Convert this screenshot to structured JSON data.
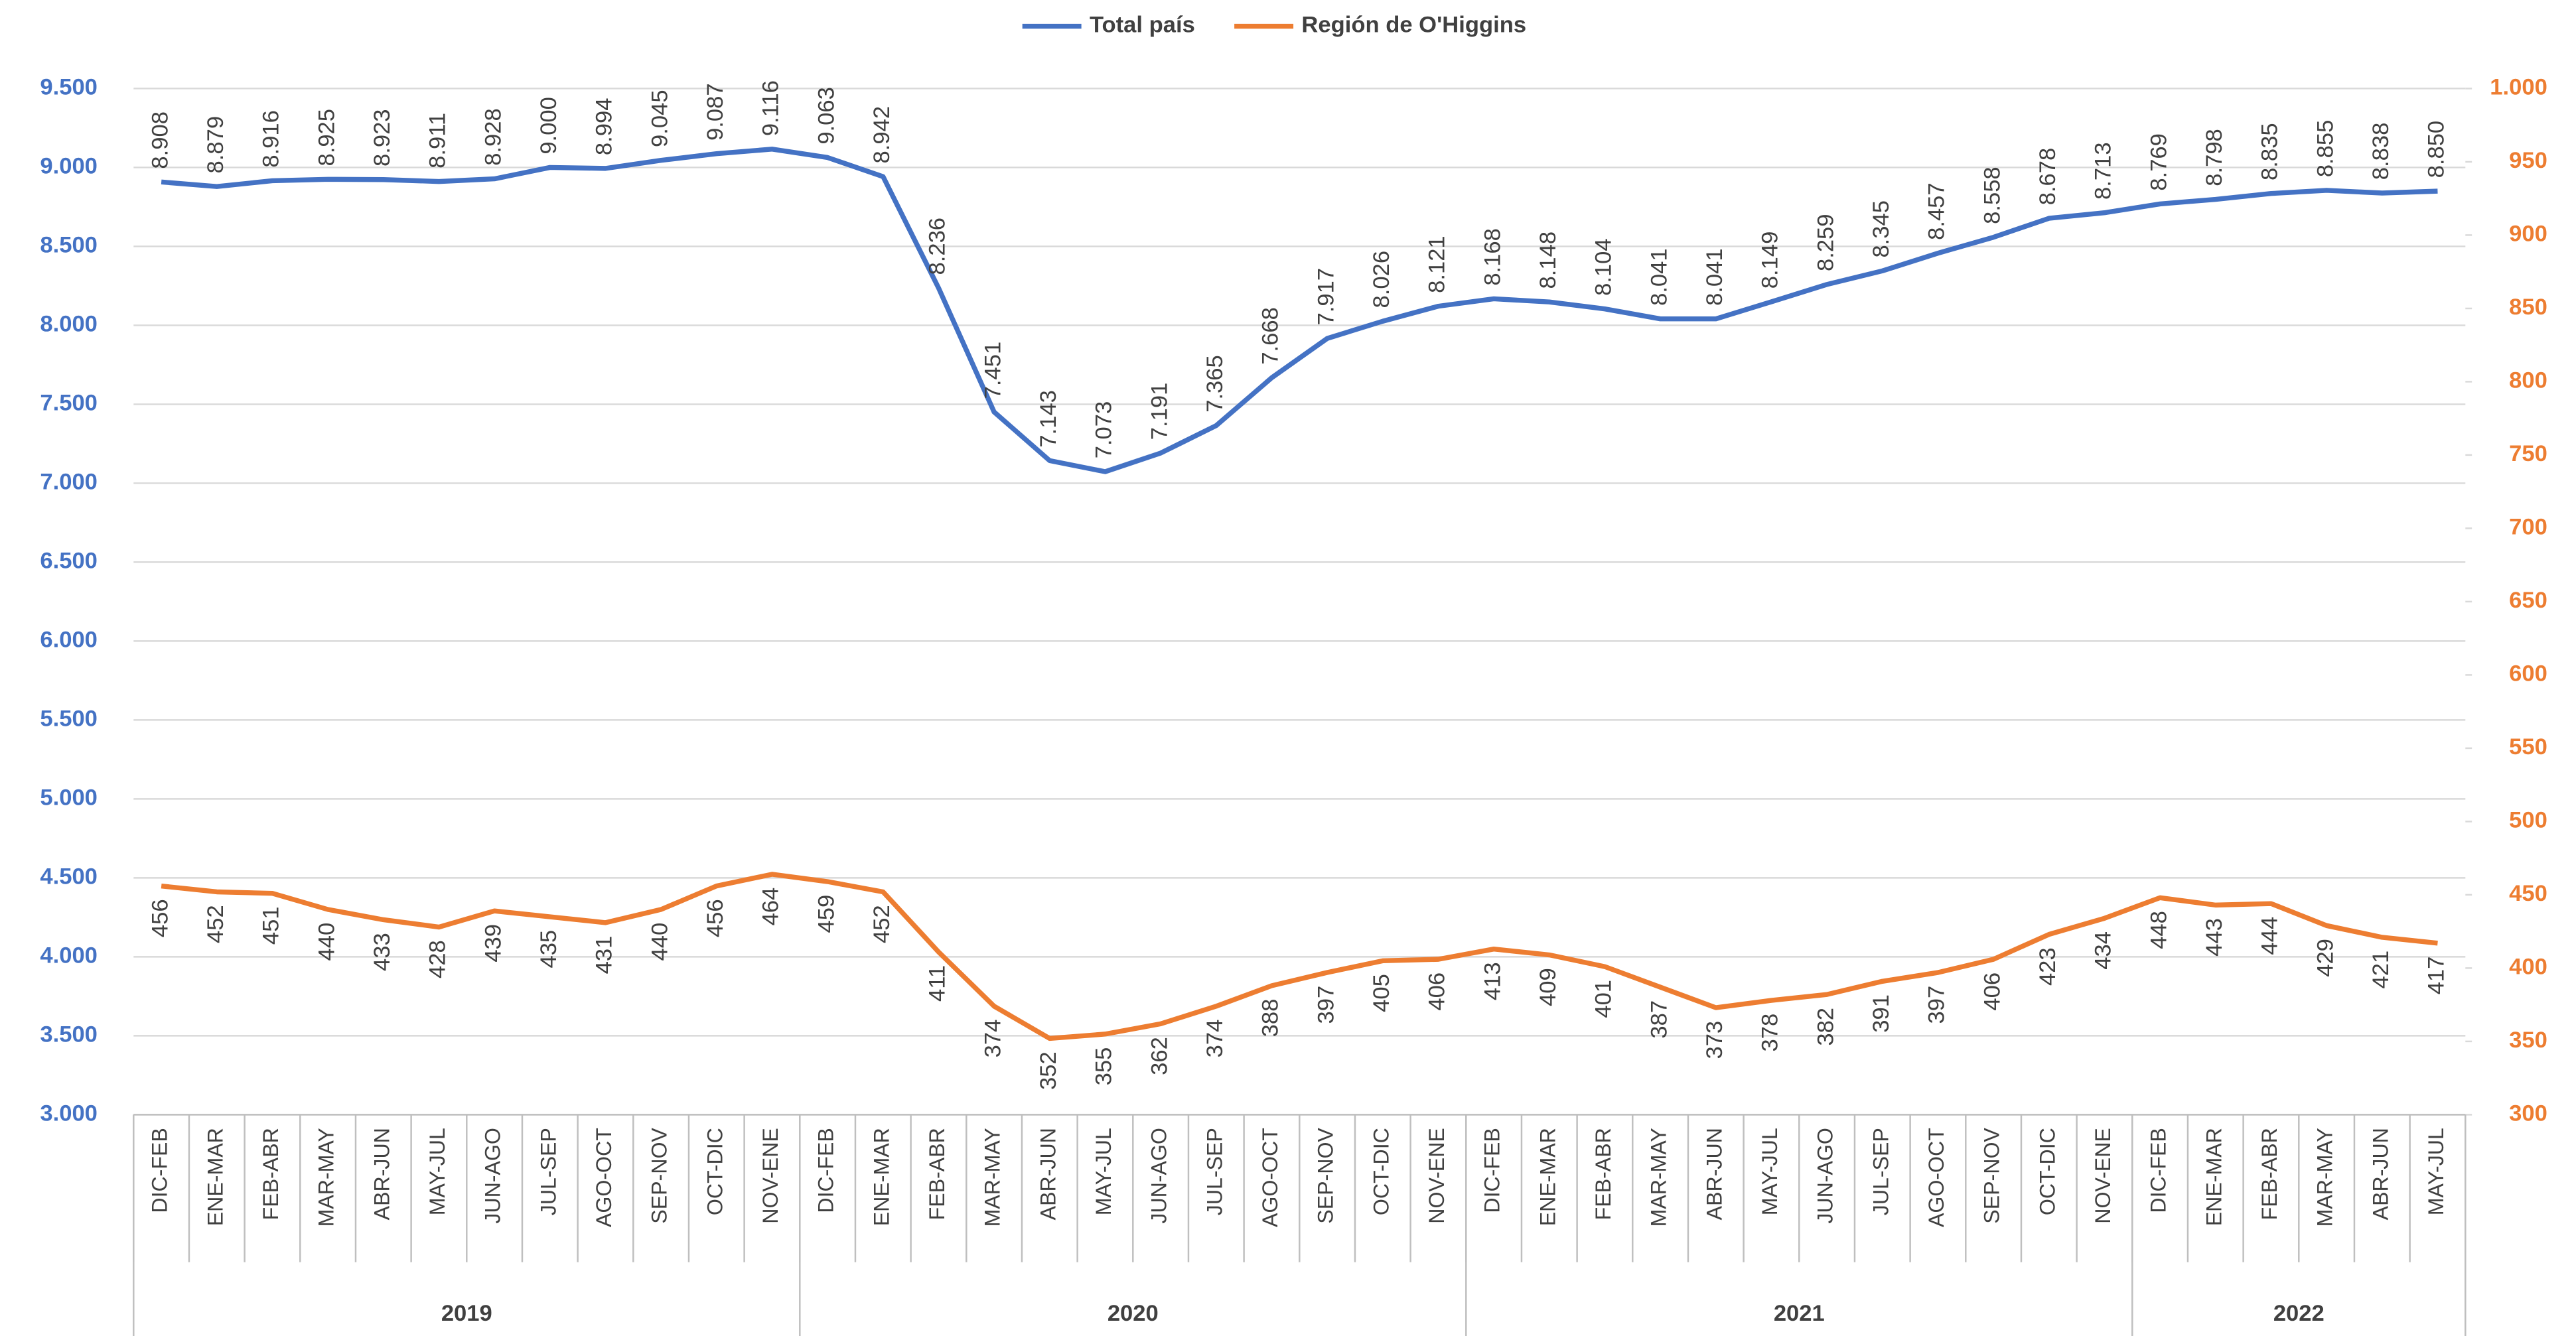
{
  "chart_data": {
    "type": "line",
    "legend": "top",
    "grid": true,
    "category_groups": [
      {
        "name": "2019",
        "categories": [
          "DIC-FEB",
          "ENE-MAR",
          "FEB-ABR",
          "MAR-MAY",
          "ABR-JUN",
          "MAY-JUL",
          "JUN-AGO",
          "JUL-SEP",
          "AGO-OCT",
          "SEP-NOV",
          "OCT-DIC",
          "NOV-ENE"
        ]
      },
      {
        "name": "2020",
        "categories": [
          "DIC-FEB",
          "ENE-MAR",
          "FEB-ABR",
          "MAR-MAY",
          "ABR-JUN",
          "MAY-JUL",
          "JUN-AGO",
          "JUL-SEP",
          "AGO-OCT",
          "SEP-NOV",
          "OCT-DIC",
          "NOV-ENE"
        ]
      },
      {
        "name": "2021",
        "categories": [
          "DIC-FEB",
          "ENE-MAR",
          "FEB-ABR",
          "MAR-MAY",
          "ABR-JUN",
          "MAY-JUL",
          "JUN-AGO",
          "JUL-SEP",
          "AGO-OCT",
          "SEP-NOV",
          "OCT-DIC",
          "NOV-ENE"
        ]
      },
      {
        "name": "2022",
        "categories": [
          "DIC-FEB",
          "ENE-MAR",
          "FEB-ABR",
          "MAR-MAY",
          "ABR-JUN",
          "MAY-JUL"
        ]
      }
    ],
    "series": [
      {
        "name": "Total país",
        "color": "#4472c4",
        "axis": "y",
        "values": [
          8908,
          8879,
          8916,
          8925,
          8923,
          8911,
          8928,
          9000,
          8994,
          9045,
          9087,
          9116,
          9063,
          8942,
          8236,
          7451,
          7143,
          7073,
          7191,
          7365,
          7668,
          7917,
          8026,
          8121,
          8168,
          8148,
          8104,
          8041,
          8041,
          8149,
          8259,
          8345,
          8457,
          8558,
          8678,
          8713,
          8769,
          8798,
          8835,
          8855,
          8838,
          8850
        ],
        "value_labels": [
          "8.908",
          "8.879",
          "8.916",
          "8.925",
          "8.923",
          "8.911",
          "8.928",
          "9.000",
          "8.994",
          "9.045",
          "9.087",
          "9.116",
          "9.063",
          "8.942",
          "8.236",
          "7.451",
          "7.143",
          "7.073",
          "7.191",
          "7.365",
          "7.668",
          "7.917",
          "8.026",
          "8.121",
          "8.168",
          "8.148",
          "8.104",
          "8.041",
          "8.041",
          "8.149",
          "8.259",
          "8.345",
          "8.457",
          "8.558",
          "8.678",
          "8.713",
          "8.769",
          "8.798",
          "8.835",
          "8.855",
          "8.838",
          "8.850"
        ]
      },
      {
        "name": "Región de O'Higgins",
        "color": "#ed7d31",
        "axis": "y2",
        "values": [
          456,
          452,
          451,
          440,
          433,
          428,
          439,
          435,
          431,
          440,
          456,
          464,
          459,
          452,
          411,
          374,
          352,
          355,
          362,
          374,
          388,
          397,
          405,
          406,
          413,
          409,
          401,
          387,
          373,
          378,
          382,
          391,
          397,
          406,
          423,
          434,
          448,
          443,
          444,
          429,
          421,
          417
        ]
      }
    ],
    "ylim": [
      3000,
      9500
    ],
    "yticks": [
      {
        "value": 3000,
        "label": "3.000"
      },
      {
        "value": 3500,
        "label": "3.500"
      },
      {
        "value": 4000,
        "label": "4.000"
      },
      {
        "value": 4500,
        "label": "4.500"
      },
      {
        "value": 5000,
        "label": "5.000"
      },
      {
        "value": 5500,
        "label": "5.500"
      },
      {
        "value": 6000,
        "label": "6.000"
      },
      {
        "value": 6500,
        "label": "6.500"
      },
      {
        "value": 7000,
        "label": "7.000"
      },
      {
        "value": 7500,
        "label": "7.500"
      },
      {
        "value": 8000,
        "label": "8.000"
      },
      {
        "value": 8500,
        "label": "8.500"
      },
      {
        "value": 9000,
        "label": "9.000"
      },
      {
        "value": 9500,
        "label": "9.500"
      }
    ],
    "y2lim": [
      300,
      1000
    ],
    "y2ticks": [
      300,
      350,
      400,
      450,
      500,
      550,
      600,
      650,
      700,
      750,
      800,
      850,
      900,
      950,
      {
        "value": 1000,
        "label": "1.000"
      }
    ]
  }
}
